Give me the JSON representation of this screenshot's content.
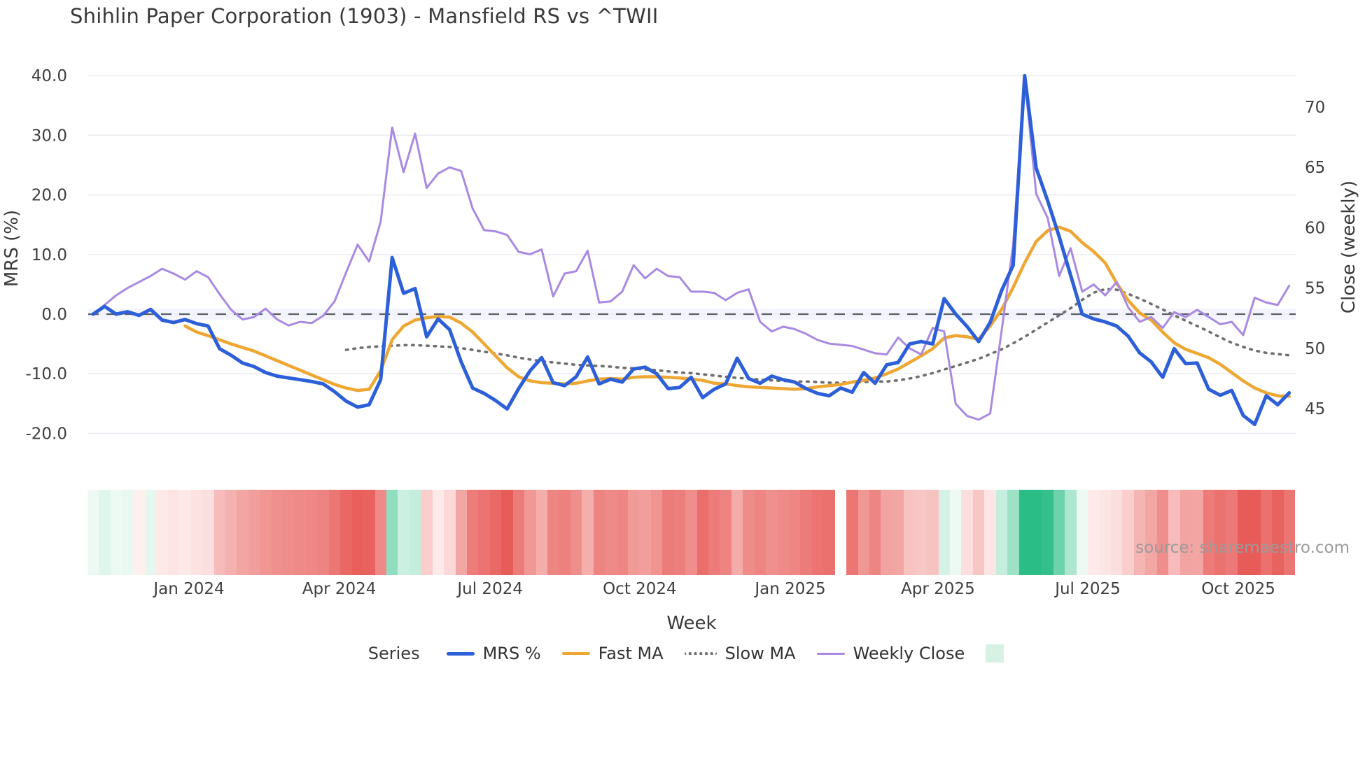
{
  "title": "Shihlin Paper Corporation (1903) - Mansfield RS vs ^TWII",
  "source_note": "source: sharemaestro.com",
  "axes": {
    "left": {
      "title": "MRS (%)",
      "ticks": [
        {
          "label": "40.0",
          "value": 40
        },
        {
          "label": "30.0",
          "value": 30
        },
        {
          "label": "20.0",
          "value": 20
        },
        {
          "label": "10.0",
          "value": 10
        },
        {
          "label": "0.0",
          "value": 0
        },
        {
          "label": "-10.0",
          "value": -10
        },
        {
          "label": "-20.0",
          "value": -20
        }
      ]
    },
    "right": {
      "title": "Close (weekly)",
      "ticks": [
        {
          "label": "70",
          "value": 70
        },
        {
          "label": "65",
          "value": 65
        },
        {
          "label": "60",
          "value": 60
        },
        {
          "label": "55",
          "value": 55
        },
        {
          "label": "50",
          "value": 50
        },
        {
          "label": "45",
          "value": 45
        }
      ]
    },
    "x": {
      "title": "Week"
    }
  },
  "legend": {
    "title": "Series",
    "items": [
      {
        "label": "MRS %",
        "color": "#2c5fd8",
        "style": "solid",
        "thickness": 5
      },
      {
        "label": "Fast MA",
        "color": "#eea733",
        "style": "solid",
        "thickness": 4
      },
      {
        "label": "Slow MA",
        "color": "#6f6f6f",
        "style": "dotted",
        "thickness": 4
      },
      {
        "label": "Weekly Close",
        "color": "#a98ae2",
        "style": "solid",
        "thickness": 3
      }
    ],
    "extra_swatch_color": "#d7f1e5"
  },
  "chart_data": {
    "type": "line",
    "title": "Shihlin Paper Corporation (1903) - Mansfield RS vs ^TWII",
    "x_description": "weekly index 0-104, Nov 2023 through Nov 2025",
    "x_ticks": [
      {
        "label": "Jan 2024",
        "week": 8.34
      },
      {
        "label": "Apr 2024",
        "week": 21.4
      },
      {
        "label": "Jul 2024",
        "week": 34.52
      },
      {
        "label": "Oct 2024",
        "week": 47.53
      },
      {
        "label": "Jan 2025",
        "week": 60.62
      },
      {
        "label": "Apr 2025",
        "week": 73.46
      },
      {
        "label": "Jul 2025",
        "week": 86.49
      },
      {
        "label": "Oct 2025",
        "week": 99.58
      }
    ],
    "y_left": {
      "label": "MRS (%)",
      "ticks": [
        40,
        30,
        20,
        10,
        0,
        -10,
        -20
      ],
      "zero_line_dashed": true
    },
    "y_right": {
      "label": "Close (weekly)",
      "ticks": [
        70,
        65,
        60,
        55,
        50,
        45
      ]
    },
    "grid": "horizontal-only",
    "legend_position": "bottom-center",
    "series": [
      {
        "name": "MRS %",
        "axis": "left",
        "color": "#2c5fd8",
        "style": "solid",
        "width": 5,
        "values": [
          0.0,
          1.3,
          0.0,
          0.4,
          -0.2,
          0.8,
          -1.0,
          -1.4,
          -0.9,
          -1.6,
          -2.0,
          -5.8,
          -6.9,
          -8.2,
          -8.8,
          -9.8,
          -10.4,
          -10.7,
          -11.0,
          -11.3,
          -11.7,
          -13.0,
          -14.6,
          -15.6,
          -15.2,
          -11.0,
          9.5,
          3.5,
          4.3,
          -3.8,
          -0.8,
          -2.6,
          -8.0,
          -12.4,
          -13.3,
          -14.5,
          -15.9,
          -12.5,
          -9.5,
          -7.3,
          -11.5,
          -12.0,
          -10.5,
          -7.2,
          -11.7,
          -10.9,
          -11.4,
          -9.2,
          -8.9,
          -10.0,
          -12.5,
          -12.3,
          -10.6,
          -14.0,
          -12.6,
          -11.7,
          -7.4,
          -10.8,
          -11.6,
          -10.4,
          -11.0,
          -11.4,
          -12.5,
          -13.3,
          -13.7,
          -12.4,
          -13.1,
          -9.8,
          -11.6,
          -8.5,
          -8.1,
          -5.0,
          -4.6,
          -5.0,
          2.6,
          0.0,
          -2.1,
          -4.6,
          -1.4,
          4.0,
          8.2,
          40.0,
          24.5,
          19.0,
          13.0,
          6.5,
          0.0,
          -0.8,
          -1.3,
          -2.0,
          -3.7,
          -6.5,
          -8.0,
          -10.6,
          -5.8,
          -8.3,
          -8.2,
          -12.6,
          -13.6,
          -12.8,
          -17.0,
          -18.5,
          -13.7,
          -15.2,
          -13.2
        ]
      },
      {
        "name": "Fast MA",
        "axis": "left",
        "color": "#eea733",
        "style": "solid",
        "width": 4.5,
        "values": [
          null,
          null,
          null,
          null,
          null,
          null,
          null,
          null,
          -2.0,
          -3.0,
          -3.6,
          -4.3,
          -5.0,
          -5.6,
          -6.2,
          -7.0,
          -7.8,
          -8.6,
          -9.4,
          -10.2,
          -11.0,
          -11.8,
          -12.4,
          -12.8,
          -12.6,
          -9.5,
          -4.3,
          -2.0,
          -1.0,
          -0.6,
          -0.4,
          -0.5,
          -1.5,
          -3.0,
          -5.0,
          -7.0,
          -9.0,
          -10.5,
          -11.2,
          -11.5,
          -11.6,
          -11.7,
          -11.6,
          -11.2,
          -10.9,
          -10.8,
          -10.9,
          -10.6,
          -10.5,
          -10.5,
          -10.6,
          -10.7,
          -10.9,
          -11.1,
          -11.6,
          -11.7,
          -12.0,
          -12.2,
          -12.3,
          -12.4,
          -12.5,
          -12.6,
          -12.5,
          -12.2,
          -12.0,
          -11.8,
          -11.4,
          -11.1,
          -10.7,
          -10.0,
          -9.2,
          -8.1,
          -7.0,
          -5.8,
          -4.0,
          -3.6,
          -3.8,
          -4.2,
          -2.0,
          0.8,
          4.5,
          8.6,
          12.2,
          14.0,
          14.6,
          13.9,
          12.0,
          10.5,
          8.6,
          5.2,
          2.3,
          0.2,
          -1.0,
          -3.0,
          -4.8,
          -5.9,
          -6.6,
          -7.3,
          -8.4,
          -9.8,
          -11.2,
          -12.4,
          -13.2,
          -13.7,
          -13.8
        ]
      },
      {
        "name": "Slow MA",
        "axis": "left",
        "color": "#6f6f6f",
        "style": "dotted",
        "width": 3.6,
        "values": [
          null,
          null,
          null,
          null,
          null,
          null,
          null,
          null,
          null,
          null,
          null,
          null,
          null,
          null,
          null,
          null,
          null,
          null,
          null,
          null,
          null,
          null,
          -6.0,
          -5.7,
          -5.5,
          -5.4,
          -5.3,
          -5.2,
          -5.2,
          -5.3,
          -5.4,
          -5.5,
          -5.7,
          -6.0,
          -6.3,
          -6.6,
          -6.9,
          -7.3,
          -7.6,
          -7.9,
          -8.1,
          -8.3,
          -8.5,
          -8.6,
          -8.7,
          -8.8,
          -9.0,
          -9.1,
          -9.3,
          -9.4,
          -9.6,
          -9.8,
          -9.9,
          -10.1,
          -10.3,
          -10.5,
          -10.7,
          -10.8,
          -11.0,
          -11.1,
          -11.2,
          -11.3,
          -11.3,
          -11.4,
          -11.5,
          -11.5,
          -11.4,
          -11.4,
          -11.3,
          -11.3,
          -11.1,
          -10.8,
          -10.4,
          -9.9,
          -9.3,
          -8.7,
          -8.1,
          -7.5,
          -6.7,
          -5.9,
          -4.9,
          -3.8,
          -2.6,
          -1.4,
          -0.2,
          1.0,
          2.4,
          3.6,
          4.2,
          4.1,
          3.4,
          2.6,
          1.7,
          0.8,
          -0.2,
          -1.1,
          -2.0,
          -2.9,
          -3.9,
          -4.8,
          -5.5,
          -6.1,
          -6.5,
          -6.7,
          -6.9
        ]
      },
      {
        "name": "Weekly Close",
        "axis": "right",
        "color": "#a98ae2",
        "style": "solid",
        "width": 3,
        "values": [
          52.85,
          53.6,
          54.4,
          55.0,
          55.5,
          56.0,
          56.6,
          56.2,
          55.7,
          56.4,
          55.9,
          54.5,
          53.2,
          52.4,
          52.6,
          53.3,
          52.4,
          51.9,
          52.2,
          52.1,
          52.7,
          53.9,
          56.3,
          58.6,
          57.2,
          60.5,
          68.3,
          64.6,
          67.8,
          63.3,
          64.5,
          65.0,
          64.7,
          61.6,
          59.8,
          59.7,
          59.4,
          58.0,
          57.8,
          58.2,
          54.3,
          56.2,
          56.4,
          58.1,
          53.8,
          53.9,
          54.7,
          56.9,
          55.8,
          56.6,
          56.0,
          55.9,
          54.7,
          54.7,
          54.6,
          54.0,
          54.6,
          54.9,
          52.2,
          51.4,
          51.8,
          51.6,
          51.2,
          50.7,
          50.4,
          50.3,
          50.2,
          49.9,
          49.6,
          49.5,
          50.9,
          50.0,
          49.5,
          51.7,
          51.4,
          45.4,
          44.4,
          44.1,
          44.6,
          51.5,
          58.6,
          72.4,
          62.8,
          60.8,
          56.0,
          58.3,
          54.7,
          55.3,
          54.4,
          55.5,
          53.4,
          52.2,
          52.6,
          51.7,
          53.0,
          52.6,
          53.2,
          52.6,
          52.0,
          52.2,
          51.1,
          54.2,
          53.8,
          53.6,
          55.2
        ]
      }
    ],
    "heatmap_strip": {
      "metric": "MRS % (green = positive, red = negative)",
      "gap_week": 65,
      "positive_color_max": "#2abd86",
      "negative_color_max": "#e75b58",
      "neutral_color": "#f6fbf9"
    }
  }
}
